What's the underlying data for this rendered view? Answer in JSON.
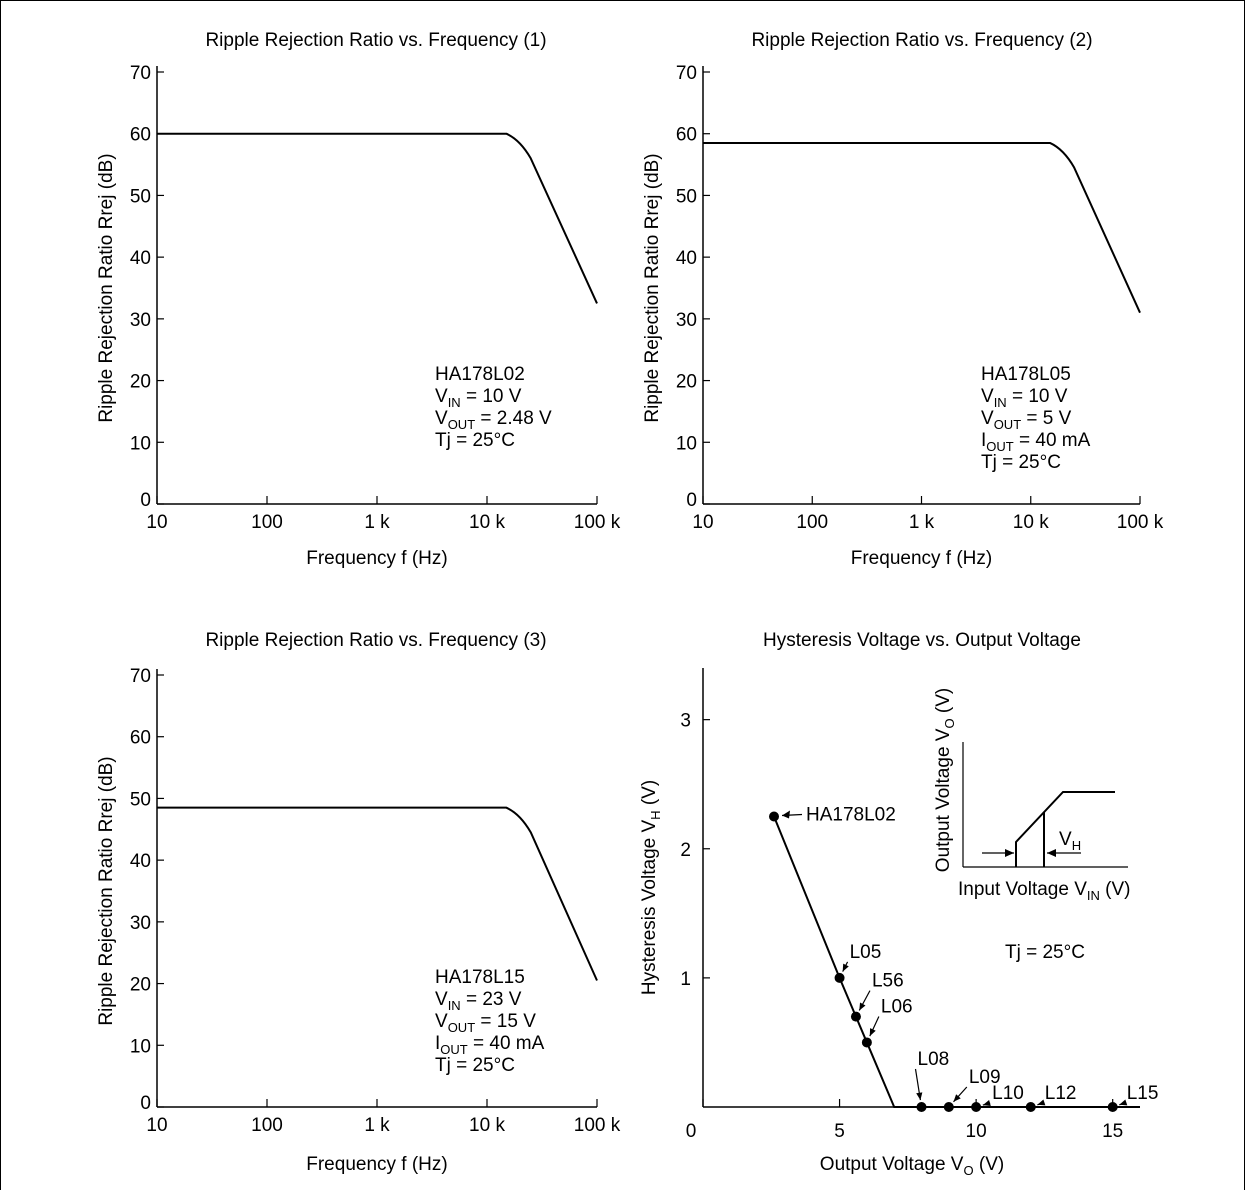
{
  "chart_data": [
    {
      "type": "line",
      "title": "Ripple Rejection Ratio vs. Frequency (1)",
      "xlabel": "Frequency  f  (Hz)",
      "ylabel": "Ripple Rejection Ratio  Rrej  (dB)",
      "x_scale": "log",
      "xlim": [
        10,
        100000
      ],
      "ylim": [
        0,
        70
      ],
      "x_ticks": [
        "10",
        "100",
        "1 k",
        "10 k",
        "100 k"
      ],
      "y_ticks": [
        "0",
        "10",
        "20",
        "30",
        "40",
        "50",
        "60",
        "70"
      ],
      "grid": false,
      "series": [
        {
          "x": [
            10,
            1000,
            10000,
            15000,
            20000,
            25000,
            100000
          ],
          "y": [
            60,
            60,
            60,
            60,
            59,
            56,
            32.5
          ]
        }
      ],
      "annotation": {
        "device": "HA178L02",
        "conditions": [
          {
            "main": "V",
            "sub": "IN",
            "rest": " = 10 V"
          },
          {
            "main": "V",
            "sub": "OUT",
            "rest": " = 2.48 V"
          },
          {
            "main": "Tj = 25°C",
            "sub": "",
            "rest": ""
          }
        ]
      }
    },
    {
      "type": "line",
      "title": "Ripple Rejection Ratio vs. Frequency (2)",
      "xlabel": "Frequency  f  (Hz)",
      "ylabel": "Ripple Rejection Ratio  Rrej  (dB)",
      "x_scale": "log",
      "xlim": [
        10,
        100000
      ],
      "ylim": [
        0,
        70
      ],
      "x_ticks": [
        "10",
        "100",
        "1 k",
        "10 k",
        "100 k"
      ],
      "y_ticks": [
        "0",
        "10",
        "20",
        "30",
        "40",
        "50",
        "60",
        "70"
      ],
      "grid": false,
      "series": [
        {
          "x": [
            10,
            1000,
            10000,
            15000,
            20000,
            25000,
            100000
          ],
          "y": [
            58.5,
            58.5,
            58.5,
            58.5,
            57.5,
            54.5,
            31
          ]
        }
      ],
      "annotation": {
        "device": "HA178L05",
        "conditions": [
          {
            "main": "V",
            "sub": "IN",
            "rest": " = 10 V"
          },
          {
            "main": "V",
            "sub": "OUT",
            "rest": " = 5 V"
          },
          {
            "main": "I",
            "sub": "OUT",
            "rest": " = 40 mA"
          },
          {
            "main": "Tj = 25°C",
            "sub": "",
            "rest": ""
          }
        ]
      }
    },
    {
      "type": "line",
      "title": "Ripple Rejection Ratio vs. Frequency (3)",
      "xlabel": "Frequency  f  (Hz)",
      "ylabel": "Ripple Rejection Ratio  Rrej  (dB)",
      "x_scale": "log",
      "xlim": [
        10,
        100000
      ],
      "ylim": [
        0,
        70
      ],
      "x_ticks": [
        "10",
        "100",
        "1 k",
        "10 k",
        "100 k"
      ],
      "y_ticks": [
        "0",
        "10",
        "20",
        "30",
        "40",
        "50",
        "60",
        "70"
      ],
      "grid": false,
      "series": [
        {
          "x": [
            10,
            1000,
            10000,
            15000,
            20000,
            25000,
            100000
          ],
          "y": [
            48.5,
            48.5,
            48.5,
            48.5,
            47.5,
            44.5,
            20.5
          ]
        }
      ],
      "annotation": {
        "device": "HA178L15",
        "conditions": [
          {
            "main": "V",
            "sub": "IN",
            "rest": " = 23 V"
          },
          {
            "main": "V",
            "sub": "OUT",
            "rest": " = 15 V"
          },
          {
            "main": "I",
            "sub": "OUT",
            "rest": " = 40 mA"
          },
          {
            "main": "Tj = 25°C",
            "sub": "",
            "rest": ""
          }
        ]
      }
    },
    {
      "type": "scatter",
      "title": "Hysteresis Voltage vs. Output Voltage",
      "xlabel": {
        "main": "Output Voltage  V",
        "sub": "O",
        "rest": "  (V)"
      },
      "ylabel": {
        "main": "Hysteresis Voltage  V",
        "sub": "H",
        "rest": "  (V)"
      },
      "xlim": [
        0,
        16
      ],
      "ylim": [
        0,
        3.4
      ],
      "x_ticks": [
        "0",
        "5",
        "10",
        "15"
      ],
      "y_ticks": [
        "1",
        "2",
        "3"
      ],
      "grid": false,
      "points": [
        {
          "label": "HA178L02",
          "x": 2.6,
          "y": 2.25
        },
        {
          "label": "L05",
          "x": 5.0,
          "y": 1.0
        },
        {
          "label": "L56",
          "x": 5.6,
          "y": 0.7
        },
        {
          "label": "L06",
          "x": 6.0,
          "y": 0.5
        },
        {
          "label": "L08",
          "x": 8.0,
          "y": 0
        },
        {
          "label": "L09",
          "x": 9.0,
          "y": 0
        },
        {
          "label": "L10",
          "x": 10.0,
          "y": 0
        },
        {
          "label": "L12",
          "x": 12.0,
          "y": 0
        },
        {
          "label": "L15",
          "x": 15.0,
          "y": 0
        }
      ],
      "line": {
        "x": [
          2.6,
          5.0,
          5.6,
          6.0,
          7.0,
          16.0
        ],
        "y": [
          2.25,
          1.0,
          0.7,
          0.5,
          0,
          0
        ]
      },
      "note": "Tj = 25°C",
      "inset": {
        "xlabel": {
          "main": "Input Voltage V",
          "sub": "IN",
          "rest": " (V)"
        },
        "ylabel": {
          "main": "Output Voltage V",
          "sub": "O",
          "rest": " (V)"
        },
        "marker": {
          "main": "V",
          "sub": "H"
        }
      }
    }
  ]
}
